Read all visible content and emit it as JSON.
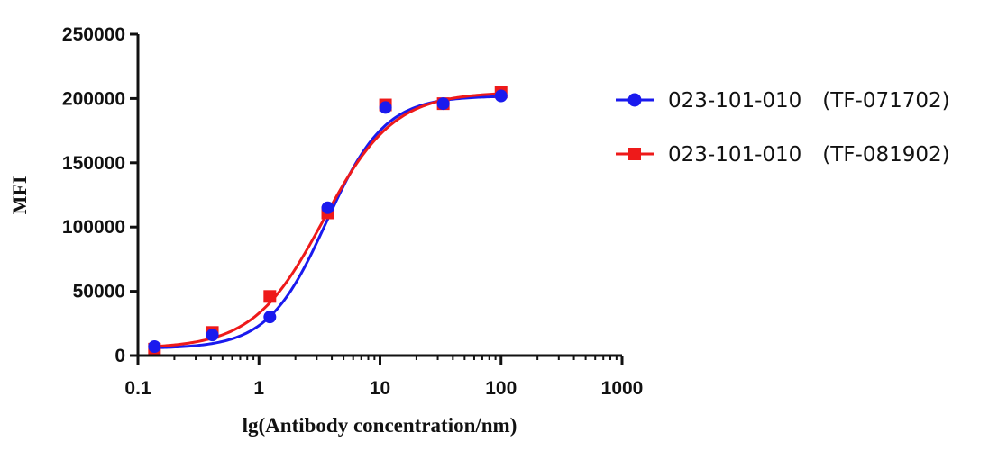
{
  "chart_data": {
    "type": "scatter",
    "title": "",
    "xlabel": "lg(Antibody concentration/nm)",
    "ylabel": "MFI",
    "x_scale": "log",
    "xlim": [
      0.1,
      1000
    ],
    "ylim": [
      0,
      250000
    ],
    "x_ticks": [
      0.1,
      1,
      10,
      100,
      1000
    ],
    "x_tick_labels": [
      "0.1",
      "1",
      "10",
      "100",
      "1000"
    ],
    "y_ticks": [
      0,
      50000,
      100000,
      150000,
      200000,
      250000
    ],
    "y_tick_labels": [
      "0",
      "50000",
      "100000",
      "150000",
      "200000",
      "250000"
    ],
    "grid": false,
    "legend_position": "right",
    "series": [
      {
        "name": "023-101-010　(TF-071702)",
        "color": "#1a1aee",
        "marker": "circle",
        "x": [
          0.137,
          0.412,
          1.23,
          3.7,
          11.1,
          33.3,
          100
        ],
        "y": [
          7000,
          16000,
          30000,
          115000,
          193000,
          196000,
          202000
        ],
        "fit": {
          "bottom": 5500,
          "top": 202000,
          "ec50": 3.6,
          "hill": 1.8
        }
      },
      {
        "name": "023-101-010　(TF-081902)",
        "color": "#ee1a1a",
        "marker": "square",
        "x": [
          0.137,
          0.412,
          1.23,
          3.7,
          11.1,
          33.3,
          100
        ],
        "y": [
          5000,
          18000,
          46000,
          111000,
          195000,
          196000,
          205000
        ],
        "fit": {
          "bottom": 5500,
          "top": 205000,
          "ec50": 3.4,
          "hill": 1.5
        }
      }
    ]
  }
}
